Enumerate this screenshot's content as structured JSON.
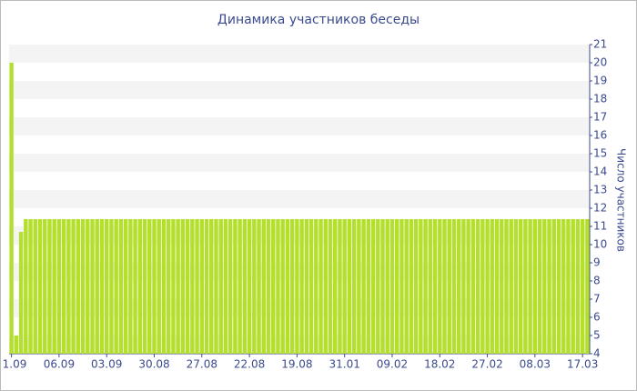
{
  "chart_data": {
    "type": "bar",
    "title": "Динамика участников беседы",
    "y_label": "Число участников",
    "categories": [
      "1.09",
      null,
      null,
      null,
      null,
      null,
      null,
      null,
      null,
      null,
      "06.09",
      null,
      null,
      null,
      null,
      null,
      null,
      null,
      null,
      null,
      "03.09",
      null,
      null,
      null,
      null,
      null,
      null,
      null,
      null,
      null,
      "30.08",
      null,
      null,
      null,
      null,
      null,
      null,
      null,
      null,
      null,
      "27.08",
      null,
      null,
      null,
      null,
      null,
      null,
      null,
      null,
      null,
      "22.08",
      null,
      null,
      null,
      null,
      null,
      null,
      null,
      null,
      null,
      "19.08",
      null,
      null,
      null,
      null,
      null,
      null,
      null,
      null,
      null,
      "31.01",
      null,
      null,
      null,
      null,
      null,
      null,
      null,
      null,
      null,
      "09.02",
      null,
      null,
      null,
      null,
      null,
      null,
      null,
      null,
      null,
      "18.02",
      null,
      null,
      null,
      null,
      null,
      null,
      null,
      null,
      null,
      "27.02",
      null,
      null,
      null,
      null,
      null,
      null,
      null,
      null,
      null,
      "08.03",
      null,
      null,
      null,
      null,
      null,
      null,
      null,
      null,
      null,
      "17.03",
      null
    ],
    "values": [
      20,
      5,
      10.7,
      11.4,
      11.4,
      11.4,
      11.4,
      11.4,
      11.4,
      11.4,
      11.4,
      11.4,
      11.4,
      11.4,
      11.4,
      11.4,
      11.4,
      11.4,
      11.4,
      11.4,
      11.4,
      11.4,
      11.4,
      11.4,
      11.4,
      11.4,
      11.4,
      11.4,
      11.4,
      11.4,
      11.4,
      11.4,
      11.4,
      11.4,
      11.4,
      11.4,
      11.4,
      11.4,
      11.4,
      11.4,
      11.4,
      11.4,
      11.4,
      11.4,
      11.4,
      11.4,
      11.4,
      11.4,
      11.4,
      11.4,
      11.4,
      11.4,
      11.4,
      11.4,
      11.4,
      11.4,
      11.4,
      11.4,
      11.4,
      11.4,
      11.4,
      11.4,
      11.4,
      11.4,
      11.4,
      11.4,
      11.4,
      11.4,
      11.4,
      11.4,
      11.4,
      11.4,
      11.4,
      11.4,
      11.4,
      11.4,
      11.4,
      11.4,
      11.4,
      11.4,
      11.4,
      11.4,
      11.4,
      11.4,
      11.4,
      11.4,
      11.4,
      11.4,
      11.4,
      11.4,
      11.4,
      11.4,
      11.4,
      11.4,
      11.4,
      11.4,
      11.4,
      11.4,
      11.4,
      11.4,
      11.4,
      11.4,
      11.4,
      11.4,
      11.4,
      11.4,
      11.4,
      11.4,
      11.4,
      11.4,
      11.4,
      11.4,
      11.4,
      11.4,
      11.4,
      11.4,
      11.4,
      11.4,
      11.4,
      11.4,
      11.4,
      11.4
    ],
    "color": "#b4df2c",
    "ylim": [
      4,
      21
    ],
    "yticks": [
      4,
      5,
      6,
      7,
      8,
      9,
      10,
      11,
      12,
      13,
      14,
      15,
      16,
      17,
      18,
      19,
      20,
      21
    ],
    "grid": true
  }
}
